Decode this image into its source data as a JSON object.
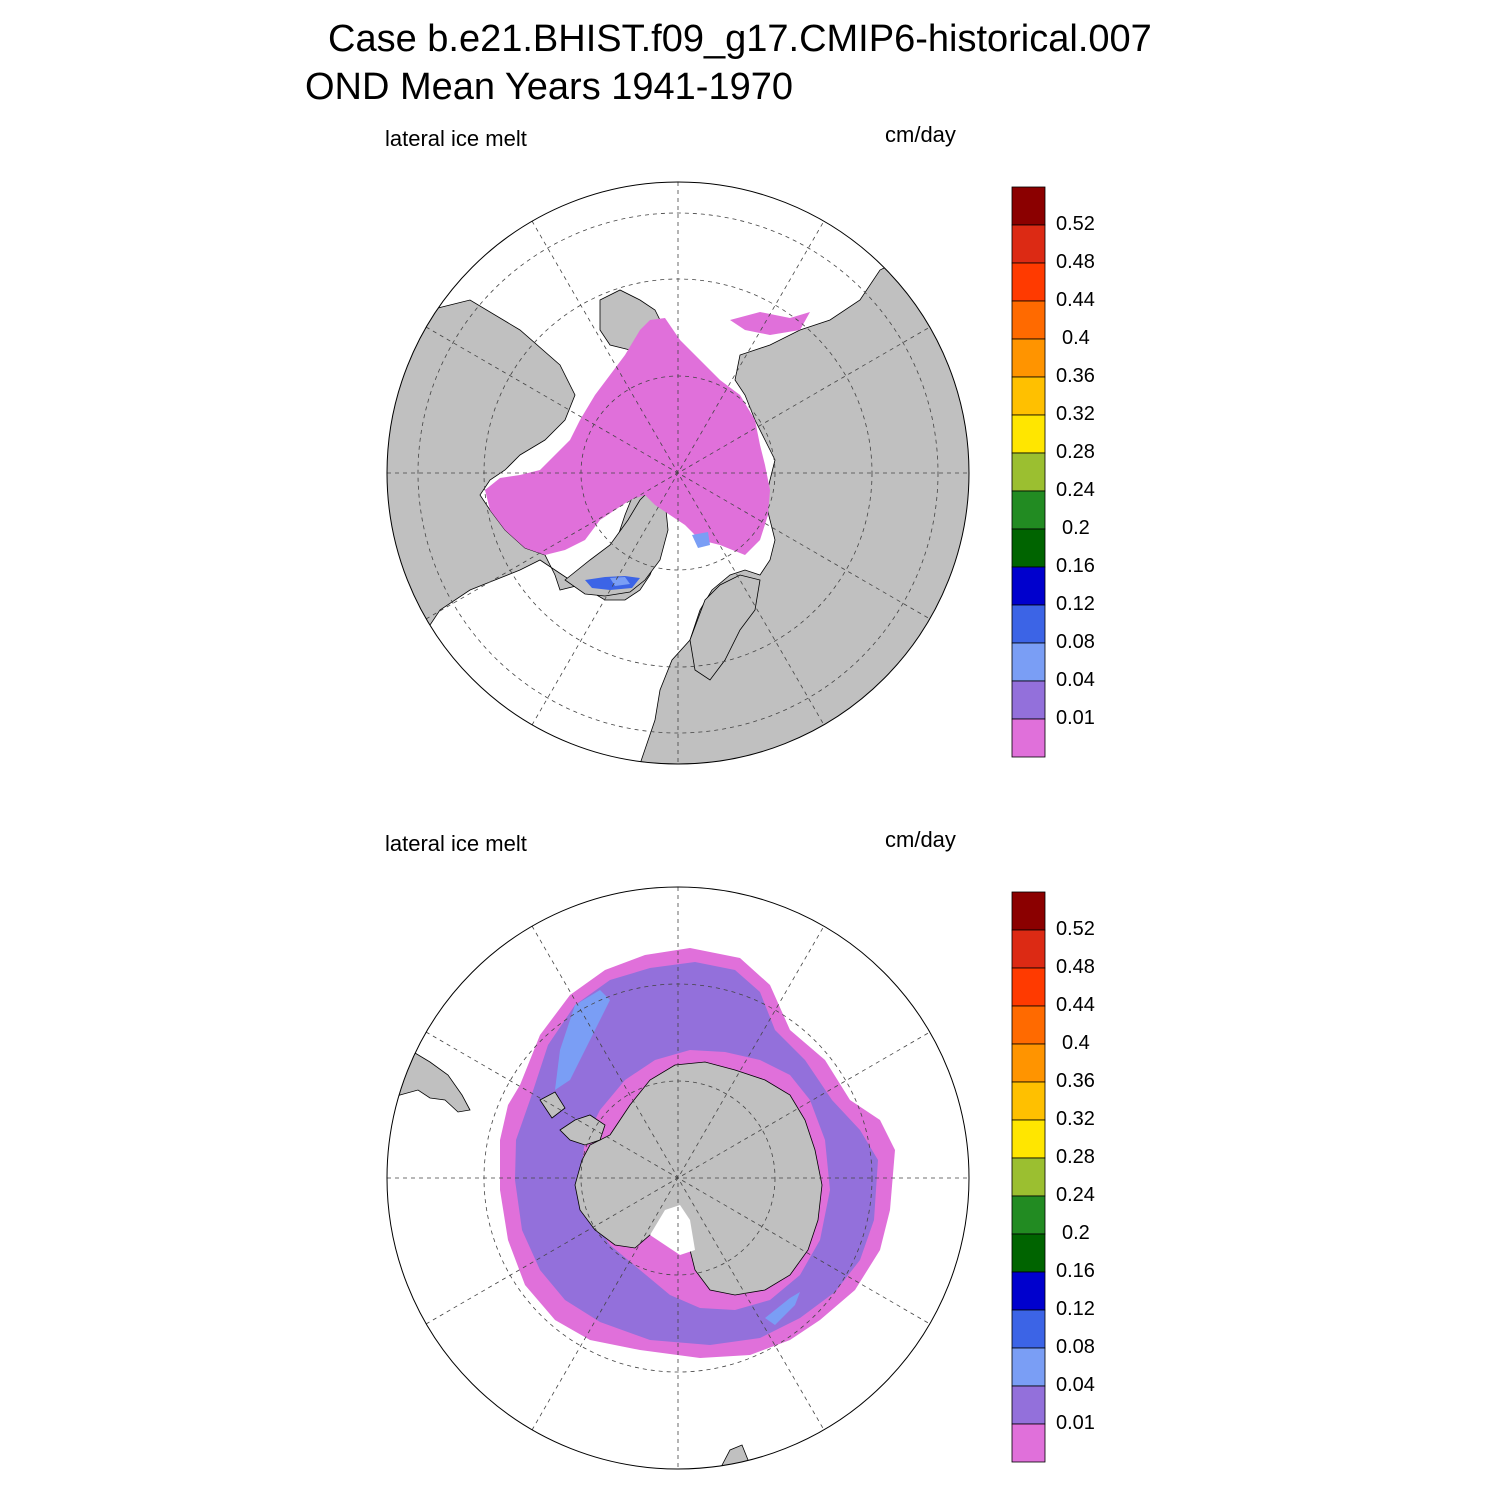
{
  "title": {
    "line1": "Case b.e21.BHIST.f09_g17.CMIP6-historical.007",
    "line2": "OND Mean   Years 1941-1970"
  },
  "panels": [
    {
      "hemisphere": "north",
      "variable": "lateral ice melt",
      "units": "cm/day"
    },
    {
      "hemisphere": "south",
      "variable": "lateral ice melt",
      "units": "cm/day"
    }
  ],
  "colorbar": {
    "labels": [
      "0.52",
      "0.48",
      "0.44",
      "0.4",
      "0.36",
      "0.32",
      "0.28",
      "0.24",
      "0.2",
      "0.16",
      "0.12",
      "0.08",
      "0.04",
      "0.01"
    ],
    "colors_top_to_bottom": [
      "#8b0000",
      "#dc2a14",
      "#ff3a00",
      "#ff6a00",
      "#ff9400",
      "#ffc000",
      "#ffe600",
      "#9bbf30",
      "#228b22",
      "#006400",
      "#0000cd",
      "#3c64e6",
      "#7a9ef5",
      "#9370db",
      "#e070da"
    ]
  },
  "colors": {
    "land": "#c0c0c0",
    "ocean": "#ffffff",
    "ice_melt_lowest": "#e070da",
    "ice_melt_low": "#9370db"
  }
}
